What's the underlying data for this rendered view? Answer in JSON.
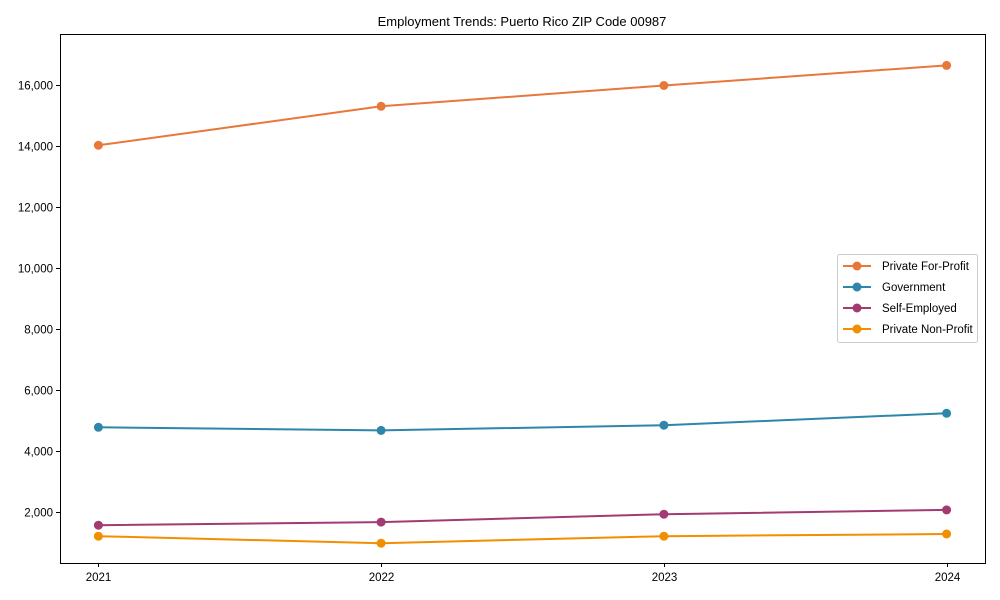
{
  "chart_data": {
    "type": "line",
    "title": "Employment Trends: Puerto Rico ZIP Code 00987",
    "xlabel": "",
    "ylabel": "",
    "categories": [
      "2021",
      "2022",
      "2023",
      "2024"
    ],
    "x": [
      2021,
      2022,
      2023,
      2024
    ],
    "yticks": [
      2000,
      4000,
      6000,
      8000,
      10000,
      12000,
      14000,
      16000
    ],
    "ytick_labels": [
      "2,000",
      "4,000",
      "6,000",
      "8,000",
      "10,000",
      "12,000",
      "14,000",
      "16,000"
    ],
    "ylim": [
      330,
      17680
    ],
    "grid": false,
    "legend_position": "center right",
    "series": [
      {
        "name": "Private For-Profit",
        "color": "#E8773A",
        "values": [
          14030,
          15310,
          15990,
          16650
        ]
      },
      {
        "name": "Government",
        "color": "#2E86AB",
        "values": [
          4780,
          4680,
          4850,
          5240
        ]
      },
      {
        "name": "Self-Employed",
        "color": "#A23B72",
        "values": [
          1570,
          1670,
          1930,
          2070
        ]
      },
      {
        "name": "Private Non-Profit",
        "color": "#F18F01",
        "values": [
          1210,
          980,
          1210,
          1280
        ]
      }
    ]
  }
}
